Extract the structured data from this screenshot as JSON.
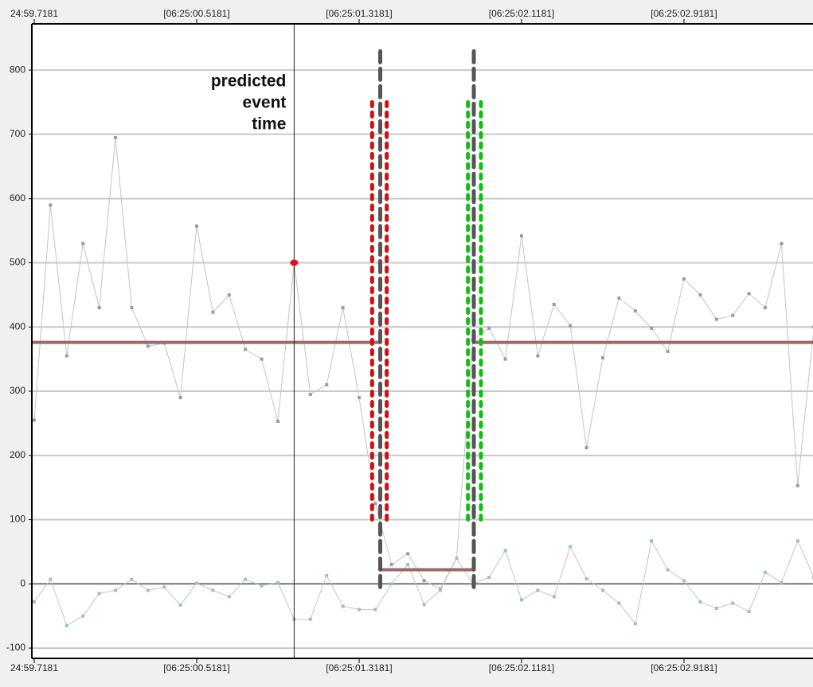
{
  "chart_data": {
    "type": "line",
    "categories": [
      "24:59.7181",
      null,
      null,
      null,
      null,
      null,
      null,
      null,
      null,
      null,
      "[06:25:00.5181]",
      null,
      null,
      null,
      null,
      null,
      null,
      null,
      null,
      null,
      "[06:25:01.3181]",
      null,
      null,
      null,
      null,
      null,
      null,
      null,
      null,
      null,
      "[06:25:02.1181]",
      null,
      null,
      null,
      null,
      null,
      null,
      null,
      null,
      null,
      "[06:25:02.9181]",
      null,
      null,
      null,
      null,
      null,
      null,
      null,
      null
    ],
    "series": [
      {
        "color": "#9a9aa8",
        "values": [
          255,
          590,
          355,
          530,
          430,
          695,
          430,
          370,
          375,
          290,
          557,
          423,
          450,
          365,
          350,
          253,
          500,
          295,
          310,
          430,
          290,
          125,
          30,
          47,
          5,
          -8,
          40,
          380,
          398,
          350,
          542,
          355,
          435,
          402,
          212,
          352,
          445,
          425,
          398,
          362,
          475,
          450,
          412,
          418,
          452,
          430,
          530,
          153,
          400
        ]
      },
      {
        "color": "#8fc9b8",
        "values": [
          -28,
          7,
          -65,
          -50,
          -15,
          -10,
          7,
          -10,
          -5,
          -33,
          1,
          -10,
          -20,
          7,
          -3,
          2,
          -55,
          -55,
          13,
          -35,
          -40,
          -40,
          0,
          30,
          -32,
          -10,
          40,
          0,
          10,
          52,
          -25,
          -10,
          -20,
          58,
          8,
          -10,
          -30,
          -62,
          67,
          22,
          5,
          -28,
          -38,
          -30,
          -43,
          18,
          2,
          67,
          10
        ]
      }
    ],
    "ylim": [
      -116,
      872
    ],
    "yticks": [
      -100,
      0,
      100,
      200,
      300,
      400,
      500,
      600,
      700,
      800
    ],
    "grid": true,
    "event": {
      "label_lines": [
        "predicted",
        "event",
        "time"
      ],
      "x": 16,
      "y": 500,
      "color": "#e01010"
    },
    "level_lines": [
      {
        "x": [
          -0.15,
          21.3
        ],
        "y": 376,
        "color": "#9a6a6a"
      },
      {
        "x": [
          21.3,
          27.06
        ],
        "y": 22,
        "color": "#9a6a6a"
      },
      {
        "x": [
          27.06,
          48.5
        ],
        "y": 376,
        "color": "#9a6a6a"
      }
    ],
    "boundaries": [
      {
        "x": 20.8,
        "y": [
          100,
          750
        ],
        "color": "#d01010",
        "style": "dotted"
      },
      {
        "x": 21.7,
        "y": [
          100,
          750
        ],
        "color": "#d01010",
        "style": "dotted"
      },
      {
        "x": 26.7,
        "y": [
          100,
          750
        ],
        "color": "#10c010",
        "style": "dotted"
      },
      {
        "x": 27.5,
        "y": [
          100,
          750
        ],
        "color": "#10c010",
        "style": "dotted"
      },
      {
        "x": 21.3,
        "y": [
          -5,
          830
        ],
        "color": "#555555",
        "style": "dashed"
      },
      {
        "x": 27.06,
        "y": [
          -5,
          830
        ],
        "color": "#555555",
        "style": "dashed"
      }
    ]
  }
}
